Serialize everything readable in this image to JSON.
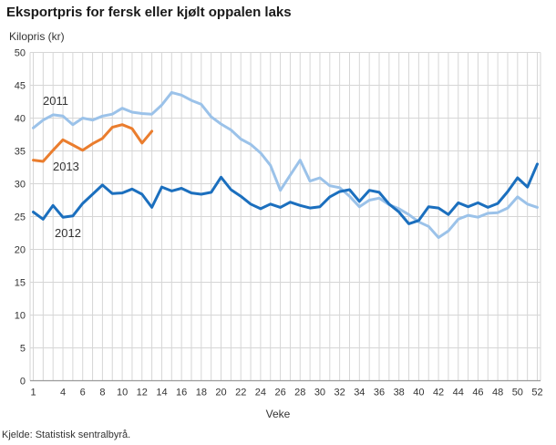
{
  "title": "Eksportpris for fersk eller kjølt oppalen laks",
  "y_unit_label": "Kilopris (kr)",
  "x_axis_title": "Veke",
  "source": "Kjelde: Statistisk sentralbyrå.",
  "colors": {
    "series_2011": "#9BC2E9",
    "series_2012": "#1B6FBE",
    "series_2013": "#EA7D2E",
    "grid": "#D6D6D6",
    "axis": "#9B9B9B",
    "text": "#333333"
  },
  "chart_data": {
    "type": "line",
    "xlabel": "Veke",
    "ylabel": "Kilopris (kr)",
    "xlim": [
      1,
      52
    ],
    "ylim": [
      0,
      50
    ],
    "grid": true,
    "y_ticks": [
      0,
      5,
      10,
      15,
      20,
      25,
      30,
      35,
      40,
      45,
      50
    ],
    "x_tick_labels": [
      1,
      4,
      6,
      8,
      10,
      12,
      14,
      16,
      18,
      20,
      22,
      24,
      26,
      28,
      30,
      32,
      34,
      36,
      38,
      40,
      42,
      44,
      46,
      48,
      50,
      52
    ],
    "x_gridline_weeks_step": 1,
    "series": [
      {
        "name": "2011",
        "color_key": "series_2011",
        "start_week": 1,
        "values": [
          38.5,
          39.7,
          40.5,
          40.3,
          39.0,
          40.0,
          39.7,
          40.3,
          40.6,
          41.5,
          40.9,
          40.7,
          40.6,
          42.0,
          43.9,
          43.5,
          42.7,
          42.1,
          40.2,
          39.1,
          38.2,
          36.8,
          36.0,
          34.7,
          32.8,
          29.0,
          31.3,
          33.6,
          30.4,
          30.9,
          29.7,
          29.4,
          28.1,
          26.5,
          27.5,
          27.8,
          26.8,
          26.2,
          25.3,
          24.2,
          23.5,
          21.8,
          22.8,
          24.6,
          25.2,
          24.9,
          25.5,
          25.6,
          26.3,
          28.0,
          26.9,
          26.4
        ]
      },
      {
        "name": "2012",
        "color_key": "series_2012",
        "start_week": 1,
        "values": [
          25.7,
          24.6,
          26.7,
          24.9,
          25.1,
          27.0,
          28.4,
          29.8,
          28.5,
          28.6,
          29.2,
          28.4,
          26.4,
          29.5,
          28.9,
          29.3,
          28.6,
          28.4,
          28.7,
          31.0,
          29.1,
          28.1,
          26.9,
          26.2,
          26.9,
          26.4,
          27.2,
          26.7,
          26.3,
          26.5,
          28.0,
          28.8,
          29.1,
          27.3,
          29.0,
          28.7,
          26.9,
          25.7,
          23.9,
          24.4,
          26.5,
          26.3,
          25.3,
          27.1,
          26.5,
          27.1,
          26.4,
          27.0,
          28.8,
          30.9,
          29.5,
          33.0
        ]
      },
      {
        "name": "2013",
        "color_key": "series_2013",
        "start_week": 1,
        "values": [
          33.6,
          33.4,
          35.1,
          36.7,
          35.9,
          35.1,
          36.1,
          36.9,
          38.6,
          39.0,
          38.4,
          36.2,
          38.0
        ]
      }
    ],
    "series_labels": [
      {
        "text": "2011",
        "week": 1.97,
        "value": 42.0
      },
      {
        "text": "2013",
        "week": 2.98,
        "value": 32.0
      },
      {
        "text": "2012",
        "week": 3.17,
        "value": 21.9
      }
    ],
    "legend_position": "inline-labels"
  }
}
